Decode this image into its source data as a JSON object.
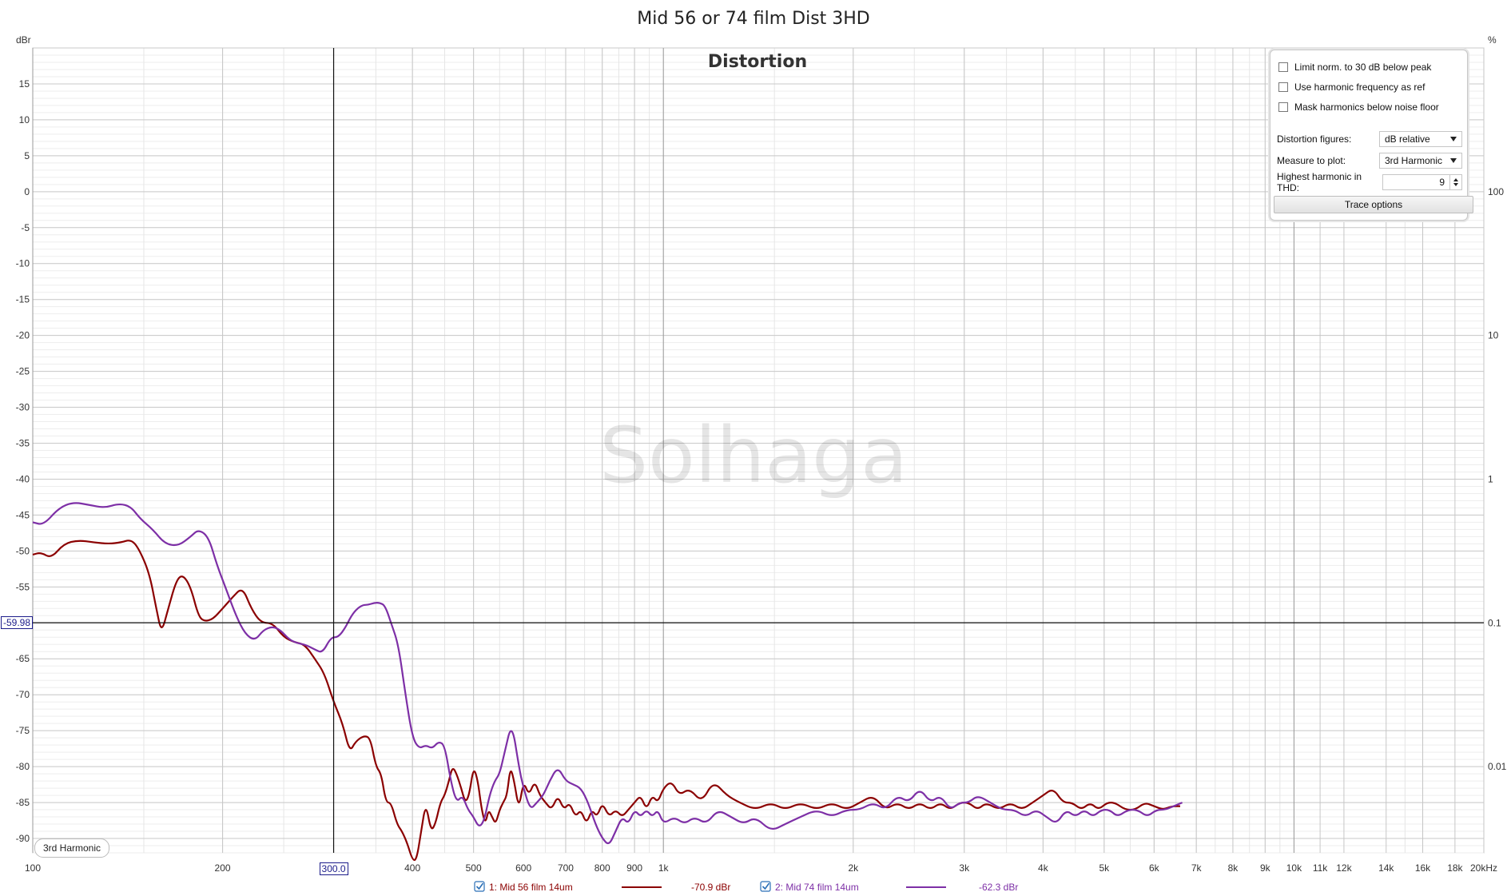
{
  "window": {
    "title": "Mid 56 or 74 film Dist 3HD",
    "plot_title": "Distortion",
    "watermark": "Solhaga",
    "left_unit": "dBr",
    "right_unit": "%"
  },
  "cursor": {
    "x_label": "300.0",
    "y_label": "-59.98",
    "x": 300,
    "y": -59.98
  },
  "measure_badge": "3rd Harmonic",
  "panel": {
    "checkboxes": [
      {
        "label": "Limit norm. to 30 dB below peak",
        "checked": false
      },
      {
        "label": "Use harmonic frequency as ref",
        "checked": false
      },
      {
        "label": "Mask harmonics below noise floor",
        "checked": false
      }
    ],
    "distortion_figures_label": "Distortion figures:",
    "distortion_figures_value": "dB relative",
    "measure_label": "Measure to plot:",
    "measure_value": "3rd Harmonic",
    "highest_label": "Highest harmonic in THD:",
    "highest_value": "9",
    "trace_button": "Trace options"
  },
  "legend": [
    {
      "label": "1: Mid 56 film 14um",
      "value": "-70.9 dBr",
      "color": "#8b0000",
      "checked": true
    },
    {
      "label": "2: Mid 74 film 14um",
      "value": "-62.3 dBr",
      "color": "#7d2fa6",
      "checked": true
    }
  ],
  "chart_data": {
    "type": "line",
    "title": "Mid 56 or 74 film Dist 3HD",
    "subtitle": "Distortion",
    "xlabel": "",
    "ylabel": "dBr",
    "y2label": "%",
    "x_scale": "log",
    "xlim": [
      100,
      20000
    ],
    "ylim": [
      -92,
      20
    ],
    "grid": true,
    "legend_position": "bottom",
    "x_ticks": [
      {
        "v": 100,
        "label": "100"
      },
      {
        "v": 200,
        "label": "200"
      },
      {
        "v": 300,
        "label": "300.0"
      },
      {
        "v": 400,
        "label": "400"
      },
      {
        "v": 500,
        "label": "500"
      },
      {
        "v": 600,
        "label": "600"
      },
      {
        "v": 700,
        "label": "700"
      },
      {
        "v": 800,
        "label": "800"
      },
      {
        "v": 900,
        "label": "900"
      },
      {
        "v": 1000,
        "label": "1k"
      },
      {
        "v": 2000,
        "label": "2k"
      },
      {
        "v": 3000,
        "label": "3k"
      },
      {
        "v": 4000,
        "label": "4k"
      },
      {
        "v": 5000,
        "label": "5k"
      },
      {
        "v": 6000,
        "label": "6k"
      },
      {
        "v": 7000,
        "label": "7k"
      },
      {
        "v": 8000,
        "label": "8k"
      },
      {
        "v": 9000,
        "label": "9k"
      },
      {
        "v": 10000,
        "label": "10k"
      },
      {
        "v": 11000,
        "label": "11k"
      },
      {
        "v": 12000,
        "label": "12k"
      },
      {
        "v": 14000,
        "label": "14k"
      },
      {
        "v": 16000,
        "label": "16k"
      },
      {
        "v": 18000,
        "label": "18k"
      },
      {
        "v": 20000,
        "label": "20kHz"
      }
    ],
    "y_ticks": [
      15,
      10,
      5,
      0,
      -5,
      -10,
      -15,
      -20,
      -25,
      -30,
      -35,
      -40,
      -45,
      -50,
      -55,
      -65,
      -70,
      -75,
      -80,
      -85,
      -90
    ],
    "y2_ticks": [
      {
        "db": 0,
        "label": "100"
      },
      {
        "db": -20,
        "label": "10"
      },
      {
        "db": -40,
        "label": "1"
      },
      {
        "db": -60,
        "label": "0.1"
      },
      {
        "db": -80,
        "label": "0.01"
      }
    ],
    "series": [
      {
        "name": "1: Mid 56 film 14um",
        "color": "#8b0000",
        "points": [
          [
            100,
            -50.5
          ],
          [
            103,
            -50.2
          ],
          [
            107,
            -51.0
          ],
          [
            112,
            -49.0
          ],
          [
            118,
            -48.5
          ],
          [
            125,
            -48.8
          ],
          [
            132,
            -49.0
          ],
          [
            138,
            -48.8
          ],
          [
            143,
            -48.4
          ],
          [
            147,
            -49.5
          ],
          [
            153,
            -53
          ],
          [
            157,
            -58
          ],
          [
            160,
            -61.5
          ],
          [
            164,
            -58
          ],
          [
            169,
            -54
          ],
          [
            173,
            -53.3
          ],
          [
            178,
            -55
          ],
          [
            183,
            -59
          ],
          [
            187,
            -59.8
          ],
          [
            193,
            -59.5
          ],
          [
            200,
            -58
          ],
          [
            207,
            -56.5
          ],
          [
            215,
            -55.0
          ],
          [
            222,
            -58
          ],
          [
            230,
            -60
          ],
          [
            240,
            -60
          ],
          [
            250,
            -62
          ],
          [
            260,
            -62.7
          ],
          [
            270,
            -63
          ],
          [
            280,
            -65
          ],
          [
            290,
            -67
          ],
          [
            300,
            -71
          ],
          [
            310,
            -74
          ],
          [
            318,
            -78
          ],
          [
            325,
            -76.5
          ],
          [
            335,
            -75.7
          ],
          [
            343,
            -76
          ],
          [
            350,
            -80
          ],
          [
            357,
            -81
          ],
          [
            363,
            -85
          ],
          [
            370,
            -85
          ],
          [
            378,
            -88
          ],
          [
            385,
            -89
          ],
          [
            392,
            -90.5
          ],
          [
            400,
            -93
          ],
          [
            406,
            -93
          ],
          [
            413,
            -89
          ],
          [
            420,
            -85
          ],
          [
            428,
            -89
          ],
          [
            435,
            -88
          ],
          [
            443,
            -85
          ],
          [
            450,
            -84
          ],
          [
            457,
            -82
          ],
          [
            463,
            -80
          ],
          [
            470,
            -81
          ],
          [
            478,
            -83
          ],
          [
            485,
            -85
          ],
          [
            492,
            -84
          ],
          [
            500,
            -80
          ],
          [
            508,
            -82
          ],
          [
            515,
            -86
          ],
          [
            522,
            -88
          ],
          [
            528,
            -86
          ],
          [
            535,
            -87
          ],
          [
            542,
            -88
          ],
          [
            550,
            -86
          ],
          [
            557,
            -85
          ],
          [
            565,
            -84
          ],
          [
            572,
            -80
          ],
          [
            580,
            -82
          ],
          [
            590,
            -86
          ],
          [
            600,
            -82
          ],
          [
            612,
            -84
          ],
          [
            625,
            -82
          ],
          [
            637,
            -84
          ],
          [
            650,
            -85
          ],
          [
            665,
            -86
          ],
          [
            680,
            -84
          ],
          [
            695,
            -86
          ],
          [
            710,
            -85
          ],
          [
            725,
            -87
          ],
          [
            740,
            -86
          ],
          [
            755,
            -88
          ],
          [
            770,
            -86
          ],
          [
            785,
            -87
          ],
          [
            800,
            -85
          ],
          [
            820,
            -87
          ],
          [
            840,
            -86
          ],
          [
            860,
            -87
          ],
          [
            880,
            -86
          ],
          [
            900,
            -85
          ],
          [
            920,
            -84
          ],
          [
            940,
            -86
          ],
          [
            960,
            -84
          ],
          [
            980,
            -85
          ],
          [
            1000,
            -83
          ],
          [
            1030,
            -82
          ],
          [
            1060,
            -84
          ],
          [
            1100,
            -83
          ],
          [
            1150,
            -85
          ],
          [
            1200,
            -82
          ],
          [
            1260,
            -84
          ],
          [
            1320,
            -85
          ],
          [
            1400,
            -86
          ],
          [
            1480,
            -85
          ],
          [
            1560,
            -86
          ],
          [
            1650,
            -85
          ],
          [
            1750,
            -86
          ],
          [
            1850,
            -85
          ],
          [
            1950,
            -86
          ],
          [
            2050,
            -85
          ],
          [
            2150,
            -84
          ],
          [
            2250,
            -86
          ],
          [
            2350,
            -85
          ],
          [
            2450,
            -86
          ],
          [
            2550,
            -85
          ],
          [
            2650,
            -86
          ],
          [
            2750,
            -85
          ],
          [
            2850,
            -86
          ],
          [
            2950,
            -85
          ],
          [
            3050,
            -85
          ],
          [
            3150,
            -86
          ],
          [
            3250,
            -85
          ],
          [
            3400,
            -86
          ],
          [
            3550,
            -85
          ],
          [
            3700,
            -86
          ],
          [
            3850,
            -85
          ],
          [
            4000,
            -84
          ],
          [
            4150,
            -83
          ],
          [
            4300,
            -85
          ],
          [
            4450,
            -85
          ],
          [
            4600,
            -86
          ],
          [
            4750,
            -85
          ],
          [
            4900,
            -86
          ],
          [
            5050,
            -85
          ],
          [
            5200,
            -85
          ],
          [
            5400,
            -86
          ],
          [
            5600,
            -86
          ],
          [
            5800,
            -85
          ],
          [
            6000,
            -85.5
          ],
          [
            6200,
            -86
          ],
          [
            6400,
            -85.5
          ],
          [
            6600,
            -85.5
          ]
        ]
      },
      {
        "name": "2: Mid 74 film 14um",
        "color": "#7d2fa6",
        "points": [
          [
            100,
            -46
          ],
          [
            104,
            -46.4
          ],
          [
            110,
            -44
          ],
          [
            116,
            -43.2
          ],
          [
            123,
            -43.6
          ],
          [
            130,
            -44
          ],
          [
            137,
            -43.4
          ],
          [
            143,
            -43.8
          ],
          [
            148,
            -45.5
          ],
          [
            155,
            -47
          ],
          [
            162,
            -49
          ],
          [
            170,
            -49.3
          ],
          [
            178,
            -48
          ],
          [
            183,
            -47
          ],
          [
            190,
            -48
          ],
          [
            196,
            -52
          ],
          [
            202,
            -55
          ],
          [
            210,
            -59
          ],
          [
            217,
            -61.5
          ],
          [
            225,
            -62.5
          ],
          [
            232,
            -61
          ],
          [
            240,
            -60.5
          ],
          [
            247,
            -61
          ],
          [
            255,
            -62.3
          ],
          [
            262,
            -62.8
          ],
          [
            270,
            -63
          ],
          [
            280,
            -63.7
          ],
          [
            288,
            -64.2
          ],
          [
            297,
            -62
          ],
          [
            305,
            -62
          ],
          [
            313,
            -60.7
          ],
          [
            320,
            -59
          ],
          [
            327,
            -58
          ],
          [
            334,
            -57.5
          ],
          [
            340,
            -57.5
          ],
          [
            348,
            -57.2
          ],
          [
            355,
            -57.2
          ],
          [
            362,
            -57.6
          ],
          [
            370,
            -60
          ],
          [
            380,
            -63
          ],
          [
            390,
            -70
          ],
          [
            400,
            -76
          ],
          [
            410,
            -77.5
          ],
          [
            420,
            -77
          ],
          [
            430,
            -77.5
          ],
          [
            440,
            -76.5
          ],
          [
            450,
            -77
          ],
          [
            460,
            -82
          ],
          [
            470,
            -85
          ],
          [
            480,
            -84
          ],
          [
            490,
            -86
          ],
          [
            500,
            -87
          ],
          [
            510,
            -88.5
          ],
          [
            520,
            -87.5
          ],
          [
            530,
            -84
          ],
          [
            540,
            -82
          ],
          [
            550,
            -81
          ],
          [
            560,
            -78
          ],
          [
            575,
            -73.8
          ],
          [
            590,
            -80
          ],
          [
            600,
            -83
          ],
          [
            615,
            -86
          ],
          [
            630,
            -85
          ],
          [
            645,
            -84
          ],
          [
            660,
            -82
          ],
          [
            680,
            -80
          ],
          [
            700,
            -82
          ],
          [
            720,
            -82.5
          ],
          [
            740,
            -83
          ],
          [
            760,
            -85
          ],
          [
            780,
            -88
          ],
          [
            800,
            -90
          ],
          [
            820,
            -91
          ],
          [
            840,
            -89
          ],
          [
            860,
            -87
          ],
          [
            880,
            -88
          ],
          [
            900,
            -86
          ],
          [
            920,
            -87
          ],
          [
            940,
            -86
          ],
          [
            960,
            -87
          ],
          [
            980,
            -86
          ],
          [
            1000,
            -88
          ],
          [
            1040,
            -87
          ],
          [
            1080,
            -88
          ],
          [
            1120,
            -87
          ],
          [
            1170,
            -88
          ],
          [
            1220,
            -86
          ],
          [
            1280,
            -87
          ],
          [
            1340,
            -88
          ],
          [
            1400,
            -87
          ],
          [
            1480,
            -89
          ],
          [
            1560,
            -88
          ],
          [
            1650,
            -87
          ],
          [
            1750,
            -86
          ],
          [
            1850,
            -87
          ],
          [
            1950,
            -86
          ],
          [
            2050,
            -86
          ],
          [
            2150,
            -85
          ],
          [
            2250,
            -86
          ],
          [
            2350,
            -84
          ],
          [
            2450,
            -85
          ],
          [
            2550,
            -83
          ],
          [
            2650,
            -85
          ],
          [
            2750,
            -84
          ],
          [
            2850,
            -86
          ],
          [
            2950,
            -85
          ],
          [
            3050,
            -85
          ],
          [
            3150,
            -84
          ],
          [
            3300,
            -85
          ],
          [
            3450,
            -86
          ],
          [
            3600,
            -86
          ],
          [
            3750,
            -87
          ],
          [
            3900,
            -86
          ],
          [
            4050,
            -87
          ],
          [
            4200,
            -88
          ],
          [
            4350,
            -86
          ],
          [
            4500,
            -87
          ],
          [
            4650,
            -86
          ],
          [
            4800,
            -87
          ],
          [
            4950,
            -86
          ],
          [
            5100,
            -86
          ],
          [
            5250,
            -87
          ],
          [
            5450,
            -86
          ],
          [
            5650,
            -86
          ],
          [
            5850,
            -87
          ],
          [
            6050,
            -86
          ],
          [
            6250,
            -86
          ],
          [
            6450,
            -85.5
          ],
          [
            6650,
            -85
          ]
        ]
      }
    ]
  }
}
